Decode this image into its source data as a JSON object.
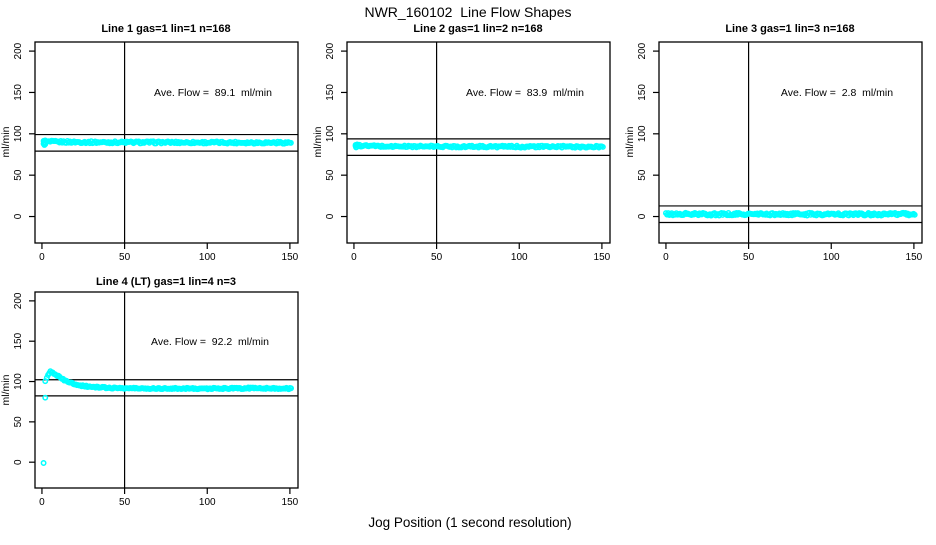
{
  "figure": {
    "title": "NWR_160102  Line Flow Shapes",
    "xlabel": "Jog Position (1 second resolution)",
    "background_color": "#FFFFFF",
    "axis_color": "#000000",
    "point_color": "#00FFFF"
  },
  "chart_data": [
    {
      "type": "scatter",
      "title": "Line 1 gas=1 lin=1 n=168",
      "line_number": 1,
      "gas": 1,
      "lin": 1,
      "n": 168,
      "annotation": "Ave. Flow =  89.1  ml/min",
      "ave_flow_ml_min": 89.1,
      "ylabel": "ml/min",
      "xlim": [
        -4.2,
        154.9
      ],
      "ylim": [
        -32,
        211
      ],
      "xticks": [
        0,
        50,
        100,
        150
      ],
      "yticks": [
        0,
        50,
        100,
        150,
        200
      ],
      "grid": false,
      "vline_x": 50,
      "hlines_y": [
        99.1,
        79.1
      ],
      "series": {
        "x_start": 1,
        "x_end": 151,
        "step": 0.8,
        "jitter": 1.3,
        "profile": [
          [
            1,
            90.5
          ],
          [
            30,
            89.8
          ],
          [
            151,
            89.3
          ]
        ],
        "extra_points": [
          [
            1,
            88
          ],
          [
            1.2,
            91.5
          ],
          [
            1.5,
            86.5
          ],
          [
            2,
            92
          ],
          [
            2,
            87.5
          ]
        ]
      }
    },
    {
      "type": "scatter",
      "title": "Line 2 gas=1 lin=2 n=168",
      "line_number": 2,
      "gas": 1,
      "lin": 2,
      "n": 168,
      "annotation": "Ave. Flow =  83.9  ml/min",
      "ave_flow_ml_min": 83.9,
      "ylabel": "ml/min",
      "xlim": [
        -4.2,
        154.9
      ],
      "ylim": [
        -32,
        211
      ],
      "xticks": [
        0,
        50,
        100,
        150
      ],
      "yticks": [
        0,
        50,
        100,
        150,
        200
      ],
      "grid": false,
      "vline_x": 50,
      "hlines_y": [
        93.9,
        73.9
      ],
      "series": {
        "x_start": 1,
        "x_end": 151,
        "step": 0.8,
        "jitter": 1.2,
        "profile": [
          [
            1,
            85.8
          ],
          [
            20,
            84.8
          ],
          [
            151,
            84.3
          ]
        ],
        "extra_points": [
          [
            1,
            86.5
          ],
          [
            1.3,
            83.5
          ],
          [
            2,
            87.2
          ]
        ]
      }
    },
    {
      "type": "scatter",
      "title": "Line 3 gas=1 lin=3 n=168",
      "line_number": 3,
      "gas": 1,
      "lin": 3,
      "n": 168,
      "annotation": "Ave. Flow =  2.8  ml/min",
      "ave_flow_ml_min": 2.8,
      "ylabel": "ml/min",
      "xlim": [
        -4.2,
        154.9
      ],
      "ylim": [
        -32,
        211
      ],
      "xticks": [
        0,
        50,
        100,
        150
      ],
      "yticks": [
        0,
        50,
        100,
        150,
        200
      ],
      "grid": false,
      "vline_x": 50,
      "hlines_y": [
        12.8,
        -7.2
      ],
      "series": {
        "x_start": 0,
        "x_end": 151,
        "step": 0.7,
        "jitter": 1.7,
        "profile": [
          [
            0,
            2.8
          ],
          [
            151,
            2.8
          ]
        ],
        "extra_points": []
      }
    },
    {
      "type": "scatter",
      "title": "Line 4 (LT) gas=1 lin=4 n=3",
      "line_number": 4,
      "gas": 1,
      "lin": 4,
      "n": 3,
      "annotation": "Ave. Flow =  92.2  ml/min",
      "ave_flow_ml_min": 92.2,
      "ylabel": "ml/min",
      "xlim": [
        -4.2,
        154.9
      ],
      "ylim": [
        -32,
        211
      ],
      "xticks": [
        0,
        50,
        100,
        150
      ],
      "yticks": [
        0,
        50,
        100,
        150,
        200
      ],
      "grid": false,
      "vline_x": 50,
      "hlines_y": [
        102.2,
        82.2
      ],
      "series": {
        "x_start": 3,
        "x_end": 151,
        "step": 0.7,
        "jitter": 0.9,
        "profile": [
          [
            3,
            104
          ],
          [
            4,
            109
          ],
          [
            5,
            112
          ],
          [
            6,
            111.5
          ],
          [
            7,
            110.5
          ],
          [
            8,
            109
          ],
          [
            10,
            106.5
          ],
          [
            12,
            103.5
          ],
          [
            14,
            101
          ],
          [
            16,
            99.3
          ],
          [
            18,
            98
          ],
          [
            20,
            96.8
          ],
          [
            23,
            95.3
          ],
          [
            26,
            94.3
          ],
          [
            30,
            93.4
          ],
          [
            35,
            92.7
          ],
          [
            40,
            92.3
          ],
          [
            45,
            92
          ],
          [
            50,
            91.8
          ],
          [
            60,
            91.4
          ],
          [
            70,
            91.5
          ],
          [
            80,
            91.3
          ],
          [
            90,
            91.5
          ],
          [
            100,
            91.2
          ],
          [
            110,
            91.4
          ],
          [
            120,
            91.6
          ],
          [
            130,
            91.9
          ],
          [
            140,
            91.6
          ],
          [
            151,
            91.1
          ]
        ],
        "extra_points": [
          [
            1,
            -1
          ],
          [
            2,
            80
          ],
          [
            2,
            100.5
          ]
        ]
      }
    }
  ]
}
